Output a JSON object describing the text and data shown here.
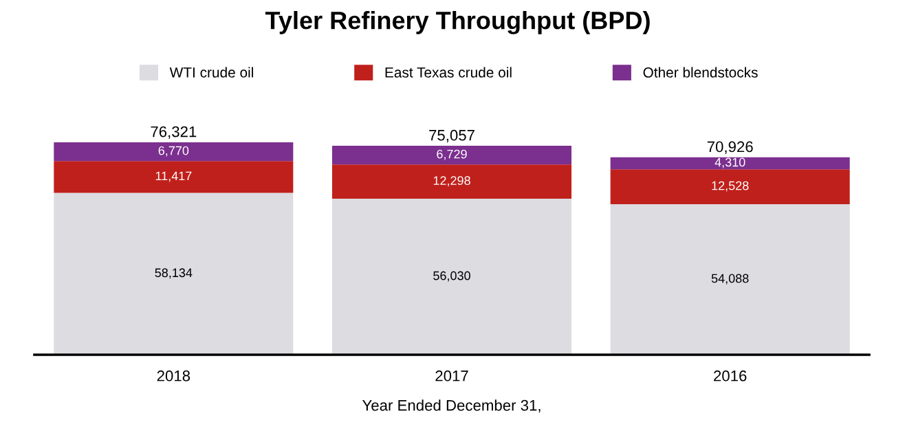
{
  "chart_data": {
    "type": "bar",
    "title": "Tyler Refinery Throughput (BPD)",
    "xlabel": "Year Ended December 31,",
    "categories": [
      "2018",
      "2017",
      "2016"
    ],
    "stacked": true,
    "legend": "top",
    "series": [
      {
        "name": "WTI crude oil",
        "color": "#dcdce1",
        "values": [
          58134,
          56030,
          54088
        ],
        "value_labels": [
          "58,134",
          "56,030",
          "54,088"
        ]
      },
      {
        "name": "East Texas crude oil",
        "color": "#c0201b",
        "values": [
          11417,
          12298,
          12528
        ],
        "value_labels": [
          "11,417",
          "12,298",
          "12,528"
        ]
      },
      {
        "name": "Other blendstocks",
        "color": "#7b2f8e",
        "values": [
          6770,
          6729,
          4310
        ],
        "value_labels": [
          "6,770",
          "6,729",
          "4,310"
        ]
      }
    ],
    "totals": [
      "76,321",
      "75,057",
      "70,926"
    ]
  }
}
